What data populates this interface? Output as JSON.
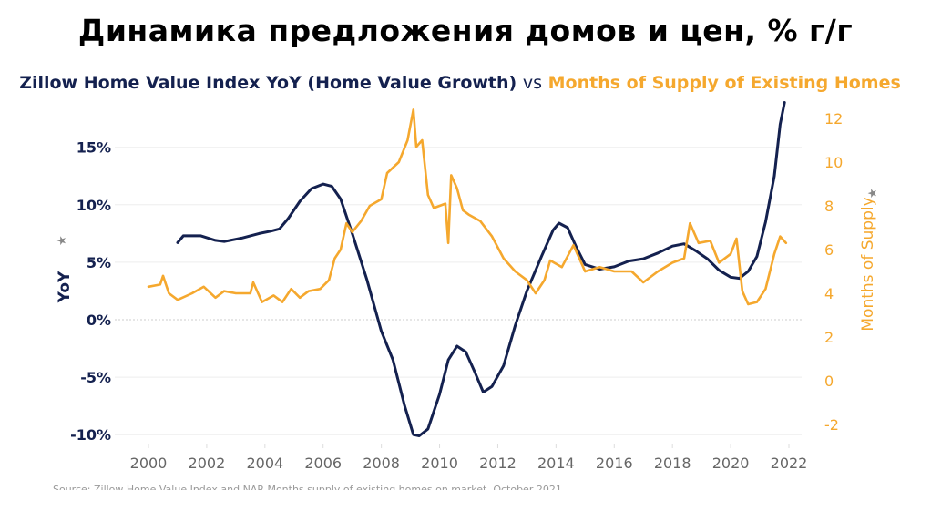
{
  "title": "Динамика предложения домов и цен, % г/г",
  "subtitle": {
    "series1": "Zillow Home Value Index YoY (Home Value Growth)",
    "vs": "vs",
    "series2": "Months of Supply of Existing Homes"
  },
  "source": "Source: Zillow Home Value Index and NAR Months supply of existing homes on market, October 2021",
  "chart_data": {
    "type": "line",
    "grid": true,
    "legend": "none",
    "xlim": [
      2000,
      2022
    ],
    "x_ticks": [
      "2000",
      "2002",
      "2004",
      "2006",
      "2008",
      "2010",
      "2012",
      "2014",
      "2016",
      "2018",
      "2020",
      "2022"
    ],
    "y_left": {
      "label": "YoY",
      "ylim": [
        -10,
        18.9
      ],
      "ticks": [
        "15%",
        "10%",
        "5%",
        "0%",
        "-5%",
        "-10%"
      ],
      "color": "#14214f"
    },
    "y_right": {
      "label": "Months of Supply",
      "ylim": [
        -2.5,
        12.5
      ],
      "ticks": [
        "12",
        "10",
        "8",
        "6",
        "4",
        "2",
        "0",
        "-2"
      ],
      "color": "#f5a82e"
    },
    "series": [
      {
        "axis": "left",
        "color": "#14214f",
        "x": [
          2001.0,
          2001.2,
          2001.8,
          2002.3,
          2002.6,
          2003.2,
          2003.8,
          2004.2,
          2004.5,
          2004.8,
          2005.2,
          2005.6,
          2006.0,
          2006.3,
          2006.6,
          2007.0,
          2007.5,
          2008.0,
          2008.4,
          2008.8,
          2009.1,
          2009.3,
          2009.6,
          2010.0,
          2010.3,
          2010.6,
          2010.9,
          2011.2,
          2011.5,
          2011.8,
          2012.2,
          2012.6,
          2013.0,
          2013.5,
          2013.9,
          2014.1,
          2014.4,
          2014.7,
          2015.0,
          2015.5,
          2016.0,
          2016.5,
          2017.0,
          2017.5,
          2018.0,
          2018.4,
          2018.8,
          2019.2,
          2019.6,
          2020.0,
          2020.3,
          2020.6,
          2020.9,
          2021.2,
          2021.5,
          2021.7,
          2021.85
        ],
        "y": [
          6.7,
          7.3,
          7.3,
          6.9,
          6.8,
          7.1,
          7.5,
          7.7,
          7.9,
          8.8,
          10.3,
          11.4,
          11.8,
          11.6,
          10.5,
          7.5,
          3.5,
          -1.0,
          -3.5,
          -7.5,
          -10.0,
          -10.1,
          -9.5,
          -6.5,
          -3.5,
          -2.3,
          -2.8,
          -4.5,
          -6.3,
          -5.8,
          -4.0,
          -0.5,
          2.5,
          5.5,
          7.8,
          8.4,
          8.0,
          6.3,
          4.8,
          4.4,
          4.6,
          5.1,
          5.3,
          5.8,
          6.4,
          6.6,
          6.0,
          5.3,
          4.3,
          3.7,
          3.6,
          4.2,
          5.5,
          8.5,
          12.5,
          17.0,
          18.9
        ]
      },
      {
        "axis": "right",
        "color": "#f5a82e",
        "x": [
          2000.0,
          2000.4,
          2000.5,
          2000.7,
          2001.0,
          2001.5,
          2001.9,
          2002.3,
          2002.6,
          2003.0,
          2003.5,
          2003.6,
          2003.9,
          2004.3,
          2004.6,
          2004.9,
          2005.2,
          2005.5,
          2005.9,
          2006.2,
          2006.4,
          2006.6,
          2006.8,
          2007.0,
          2007.3,
          2007.6,
          2008.0,
          2008.2,
          2008.6,
          2008.9,
          2009.1,
          2009.2,
          2009.4,
          2009.6,
          2009.8,
          2010.2,
          2010.3,
          2010.4,
          2010.6,
          2010.8,
          2011.0,
          2011.4,
          2011.8,
          2012.2,
          2012.6,
          2013.0,
          2013.3,
          2013.6,
          2013.8,
          2014.2,
          2014.6,
          2015.0,
          2015.5,
          2016.0,
          2016.6,
          2017.0,
          2017.5,
          2018.0,
          2018.4,
          2018.6,
          2018.9,
          2019.3,
          2019.6,
          2020.0,
          2020.2,
          2020.4,
          2020.6,
          2020.9,
          2021.2,
          2021.5,
          2021.7,
          2021.9
        ],
        "y": [
          4.3,
          4.4,
          4.8,
          4.0,
          3.7,
          4.0,
          4.3,
          3.8,
          4.1,
          4.0,
          4.0,
          4.5,
          3.6,
          3.9,
          3.6,
          4.2,
          3.8,
          4.1,
          4.2,
          4.6,
          5.6,
          6.0,
          7.2,
          6.8,
          7.3,
          8.0,
          8.3,
          9.5,
          10.0,
          11.0,
          12.4,
          10.7,
          11.0,
          8.5,
          7.9,
          8.1,
          6.3,
          9.4,
          8.8,
          7.8,
          7.6,
          7.3,
          6.6,
          5.6,
          5.0,
          4.6,
          4.0,
          4.6,
          5.5,
          5.2,
          6.2,
          5.0,
          5.2,
          5.0,
          5.0,
          4.5,
          5.0,
          5.4,
          5.6,
          7.2,
          6.3,
          6.4,
          5.4,
          5.8,
          6.5,
          4.1,
          3.5,
          3.6,
          4.2,
          5.8,
          6.6,
          6.3
        ]
      }
    ]
  }
}
